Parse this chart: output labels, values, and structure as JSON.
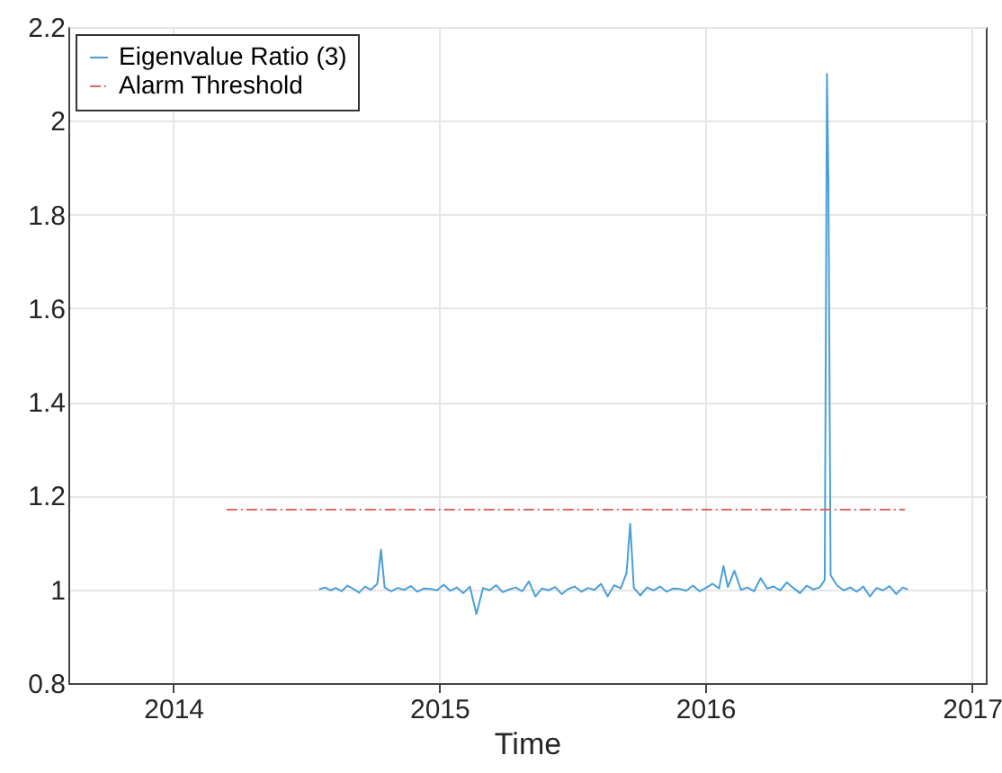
{
  "chart_data": {
    "type": "line",
    "xlabel": "Time",
    "xlim": [
      "2013-08-10",
      "2017-01-20"
    ],
    "xticks": [
      "2014",
      "2015",
      "2016",
      "2017"
    ],
    "ylim": [
      0.8,
      2.2
    ],
    "yticks": [
      0.8,
      1,
      1.2,
      1.4,
      1.6,
      1.8,
      2,
      2.2
    ],
    "grid": true,
    "legend": "top left",
    "marker": "none",
    "series": [
      {
        "name": "Eigenvalue Ratio (3)",
        "color": "#4a9fd8",
        "line_style": "solid",
        "x": [
          "2014-07-20",
          "2014-07-28",
          "2014-08-05",
          "2014-08-12",
          "2014-08-20",
          "2014-08-28",
          "2014-09-05",
          "2014-09-13",
          "2014-09-21",
          "2014-09-29",
          "2014-10-08",
          "2014-10-13",
          "2014-10-18",
          "2014-10-27",
          "2014-11-05",
          "2014-11-14",
          "2014-11-23",
          "2014-12-02",
          "2014-12-11",
          "2014-12-20",
          "2014-12-29",
          "2015-01-07",
          "2015-01-16",
          "2015-01-25",
          "2015-02-03",
          "2015-02-12",
          "2015-02-21",
          "2015-03-02",
          "2015-03-11",
          "2015-03-20",
          "2015-03-29",
          "2015-04-07",
          "2015-04-16",
          "2015-04-25",
          "2015-05-04",
          "2015-05-13",
          "2015-05-22",
          "2015-05-31",
          "2015-06-09",
          "2015-06-18",
          "2015-06-27",
          "2015-07-06",
          "2015-07-15",
          "2015-07-24",
          "2015-08-02",
          "2015-08-11",
          "2015-08-20",
          "2015-08-29",
          "2015-09-07",
          "2015-09-15",
          "2015-09-20",
          "2015-09-25",
          "2015-10-04",
          "2015-10-13",
          "2015-10-22",
          "2015-10-31",
          "2015-11-09",
          "2015-11-18",
          "2015-11-27",
          "2015-12-06",
          "2015-12-15",
          "2015-12-24",
          "2016-01-02",
          "2016-01-11",
          "2016-01-20",
          "2016-01-26",
          "2016-02-01",
          "2016-02-10",
          "2016-02-19",
          "2016-02-28",
          "2016-03-08",
          "2016-03-17",
          "2016-03-26",
          "2016-04-04",
          "2016-04-13",
          "2016-04-22",
          "2016-05-01",
          "2016-05-10",
          "2016-05-19",
          "2016-05-28",
          "2016-06-06",
          "2016-06-13",
          "2016-06-16",
          "2016-06-18",
          "2016-06-21",
          "2016-06-30",
          "2016-07-09",
          "2016-07-18",
          "2016-07-27",
          "2016-08-05",
          "2016-08-14",
          "2016-08-23",
          "2016-09-01",
          "2016-09-10",
          "2016-09-19",
          "2016-09-28",
          "2016-10-05"
        ],
        "values": [
          1.0,
          1.004,
          0.998,
          1.003,
          0.996,
          1.008,
          1.001,
          0.993,
          1.006,
          0.999,
          1.012,
          1.085,
          1.004,
          0.996,
          1.003,
          0.999,
          1.007,
          0.995,
          1.002,
          1.001,
          0.998,
          1.01,
          0.997,
          1.004,
          0.992,
          1.006,
          0.947,
          1.003,
          0.998,
          1.009,
          0.994,
          1.0,
          1.004,
          0.996,
          1.017,
          0.985,
          1.002,
          0.998,
          1.005,
          0.99,
          1.001,
          1.006,
          0.995,
          1.003,
          0.999,
          1.012,
          0.985,
          1.009,
          1.002,
          1.035,
          1.14,
          1.003,
          0.987,
          1.004,
          0.998,
          1.006,
          0.995,
          1.002,
          1.001,
          0.997,
          1.008,
          0.996,
          1.003,
          1.012,
          1.002,
          1.05,
          1.005,
          1.04,
          0.999,
          1.004,
          0.996,
          1.024,
          1.002,
          1.006,
          0.998,
          1.015,
          1.003,
          0.992,
          1.008,
          1.0,
          1.004,
          1.02,
          2.1,
          1.87,
          1.03,
          1.008,
          0.998,
          1.004,
          0.995,
          1.006,
          0.985,
          1.003,
          0.998,
          1.007,
          0.99,
          1.004,
          1.0
        ]
      },
      {
        "name": "Alarm Threshold",
        "color": "#e06666",
        "line_style": "dashed",
        "x": [
          "2014-03-15",
          "2016-10-01"
        ],
        "values": [
          1.17,
          1.17
        ]
      }
    ]
  }
}
